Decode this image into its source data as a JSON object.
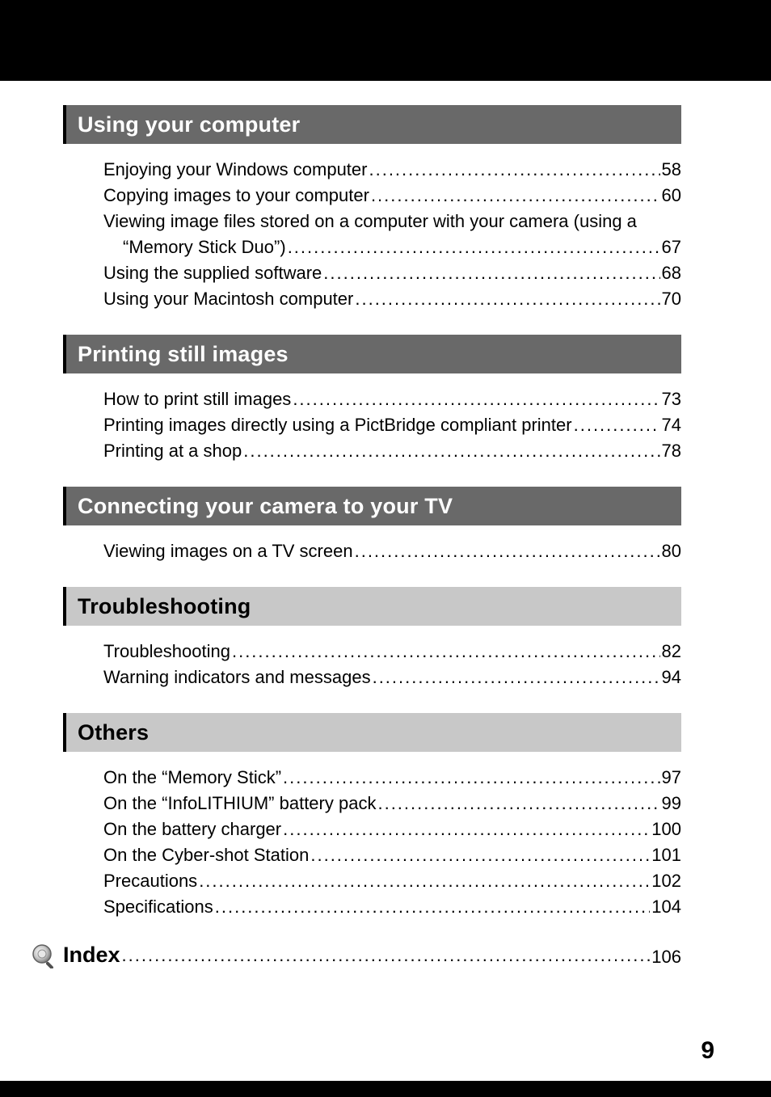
{
  "page_number": "9",
  "colors": {
    "dark_bg": "#696969",
    "light_bg": "#c8c8c8",
    "accent": "#000000",
    "text_on_dark": "#ffffff",
    "text_on_light": "#000000"
  },
  "sections": [
    {
      "variant": "dark",
      "title": "Using your computer",
      "entries": [
        {
          "title": "Enjoying your Windows computer",
          "page": "58"
        },
        {
          "title": "Copying images to your computer",
          "page": "60"
        },
        {
          "title": "Viewing image files stored on a computer with your camera (using a",
          "cont": "“Memory Stick Duo”)",
          "page": "67"
        },
        {
          "title": "Using the supplied software",
          "page": "68"
        },
        {
          "title": "Using your Macintosh computer",
          "page": "70"
        }
      ]
    },
    {
      "variant": "dark",
      "title": "Printing still images",
      "entries": [
        {
          "title": "How to print still images",
          "page": "73"
        },
        {
          "title": "Printing images directly using a PictBridge compliant printer",
          "page": "74"
        },
        {
          "title": "Printing at a shop",
          "page": "78"
        }
      ]
    },
    {
      "variant": "dark",
      "title": "Connecting your camera to your TV",
      "entries": [
        {
          "title": "Viewing images on a TV screen",
          "page": "80"
        }
      ]
    },
    {
      "variant": "light",
      "title": "Troubleshooting",
      "entries": [
        {
          "title": "Troubleshooting",
          "page": "82"
        },
        {
          "title": "Warning indicators and messages",
          "page": "94"
        }
      ]
    },
    {
      "variant": "light",
      "title": "Others",
      "entries": [
        {
          "title": "On the “Memory Stick”",
          "page": "97"
        },
        {
          "title": "On the “InfoLITHIUM” battery pack",
          "page": "99"
        },
        {
          "title": "On the battery charger",
          "page": "100"
        },
        {
          "title": "On the Cyber-shot Station",
          "page": "101"
        },
        {
          "title": "Precautions",
          "page": "102"
        },
        {
          "title": "Specifications",
          "page": "104"
        }
      ]
    }
  ],
  "index": {
    "label": "Index",
    "page": "106"
  }
}
